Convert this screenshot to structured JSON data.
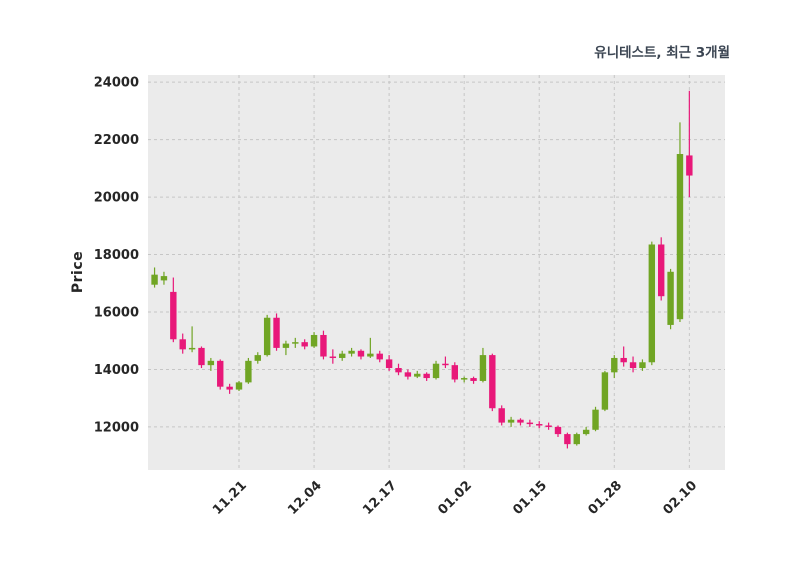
{
  "title": "유니테스트, 최근 3개월",
  "ylabel": "Price",
  "colors": {
    "up": "#70a524",
    "down": "#e81879",
    "plot_bg": "#ebebeb",
    "grid": "#c6c6c6",
    "tick_text": "#262626",
    "title_text": "#3c4653"
  },
  "chart_data": {
    "type": "candlestick",
    "title": "유니테스트, 최근 3개월",
    "ylabel": "Price",
    "xlabel": "",
    "grid": true,
    "legend_position": "none",
    "ylim": [
      10500,
      24250
    ],
    "yticks": [
      12000,
      14000,
      16000,
      18000,
      20000,
      22000,
      24000
    ],
    "xlim": [
      -0.7,
      60.8
    ],
    "xtick_labels": [
      "11.21",
      "12.04",
      "12.17",
      "01.02",
      "01.15",
      "01.28",
      "02.10"
    ],
    "xtick_indices": [
      9,
      17,
      25,
      33,
      41,
      49,
      57
    ],
    "candle_format": [
      "open",
      "high",
      "low",
      "close"
    ],
    "up_means": "close >= open (green)",
    "down_means": "close < open (magenta)",
    "candles": [
      [
        16950,
        17550,
        16850,
        17300
      ],
      [
        17100,
        17400,
        16950,
        17250
      ],
      [
        16700,
        17200,
        14950,
        15050
      ],
      [
        15050,
        15250,
        14550,
        14700
      ],
      [
        14700,
        15500,
        14600,
        14750
      ],
      [
        14750,
        14800,
        14050,
        14150
      ],
      [
        14150,
        14400,
        13950,
        14300
      ],
      [
        14300,
        14350,
        13300,
        13400
      ],
      [
        13400,
        13500,
        13150,
        13300
      ],
      [
        13300,
        13600,
        13250,
        13550
      ],
      [
        13550,
        14400,
        13500,
        14300
      ],
      [
        14300,
        14600,
        14200,
        14500
      ],
      [
        14500,
        15900,
        14450,
        15800
      ],
      [
        15800,
        15950,
        14650,
        14750
      ],
      [
        14750,
        15000,
        14500,
        14900
      ],
      [
        14900,
        15100,
        14750,
        14950
      ],
      [
        14950,
        15050,
        14700,
        14800
      ],
      [
        14800,
        15300,
        14750,
        15200
      ],
      [
        15200,
        15350,
        14350,
        14450
      ],
      [
        14450,
        14700,
        14200,
        14400
      ],
      [
        14400,
        14650,
        14300,
        14550
      ],
      [
        14550,
        14750,
        14450,
        14650
      ],
      [
        14650,
        14700,
        14350,
        14450
      ],
      [
        14450,
        15100,
        14400,
        14550
      ],
      [
        14550,
        14650,
        14250,
        14350
      ],
      [
        14350,
        14500,
        13950,
        14050
      ],
      [
        14050,
        14200,
        13800,
        13900
      ],
      [
        13900,
        14000,
        13650,
        13750
      ],
      [
        13750,
        13950,
        13700,
        13850
      ],
      [
        13850,
        13900,
        13600,
        13700
      ],
      [
        13700,
        14300,
        13650,
        14200
      ],
      [
        14200,
        14450,
        14050,
        14150
      ],
      [
        14150,
        14250,
        13550,
        13650
      ],
      [
        13650,
        13750,
        13550,
        13700
      ],
      [
        13700,
        13750,
        13500,
        13600
      ],
      [
        13600,
        14750,
        13550,
        14500
      ],
      [
        14500,
        14550,
        12550,
        12650
      ],
      [
        12650,
        12750,
        12050,
        12150
      ],
      [
        12150,
        12350,
        12000,
        12250
      ],
      [
        12250,
        12300,
        12050,
        12150
      ],
      [
        12150,
        12250,
        12000,
        12100
      ],
      [
        12100,
        12200,
        11950,
        12050
      ],
      [
        12050,
        12150,
        11900,
        12000
      ],
      [
        12000,
        12050,
        11650,
        11750
      ],
      [
        11750,
        11800,
        11250,
        11400
      ],
      [
        11400,
        11800,
        11350,
        11750
      ],
      [
        11750,
        12000,
        11700,
        11900
      ],
      [
        11900,
        12700,
        11850,
        12600
      ],
      [
        12600,
        13950,
        12550,
        13900
      ],
      [
        13900,
        14500,
        13700,
        14400
      ],
      [
        14400,
        14800,
        14100,
        14250
      ],
      [
        14250,
        14450,
        13900,
        14050
      ],
      [
        14050,
        14350,
        13950,
        14250
      ],
      [
        14250,
        18450,
        14150,
        18350
      ],
      [
        18350,
        18600,
        16400,
        16550
      ],
      [
        15550,
        17500,
        15400,
        17400
      ],
      [
        15750,
        22600,
        15650,
        21500
      ],
      [
        21450,
        23700,
        20000,
        20750
      ]
    ]
  }
}
